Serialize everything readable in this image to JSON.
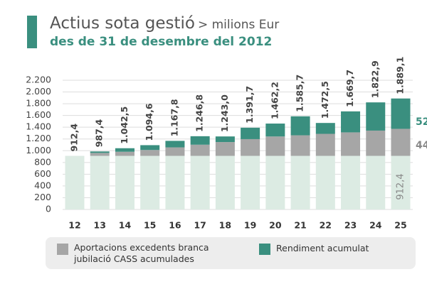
{
  "chart_data": {
    "type": "stacked_bar",
    "title": "Actius sota gestió",
    "unit": "> milions Eur",
    "subtitle": "des de 31 de desembre del 2012",
    "categories": [
      "12",
      "13",
      "14",
      "15",
      "16",
      "17",
      "18",
      "19",
      "20",
      "21",
      "22",
      "23",
      "24",
      "25"
    ],
    "series": [
      {
        "color": "#dcebe3",
        "values": [
          912.4,
          912.4,
          912.4,
          912.4,
          912.4,
          912.4,
          912.4,
          912.4,
          912.4,
          912.4,
          912.4,
          912.4,
          912.4,
          912.4
        ],
        "value_labels": [
          null,
          null,
          null,
          null,
          null,
          null,
          null,
          null,
          null,
          null,
          null,
          null,
          null,
          "912,4"
        ]
      },
      {
        "name": "Aportacions excedents branca jubilació CASS acumulades",
        "color": "#a6a6a6",
        "values": [
          0,
          50,
          70,
          100,
          145,
          190,
          235,
          285,
          330,
          350,
          375,
          400,
          430,
          460
        ]
      },
      {
        "name": "Rendiment acumulat",
        "color": "#3a8f7f",
        "values": [
          0,
          25,
          60.1,
          82.2,
          110.4,
          144.4,
          95.6,
          194.3,
          219.8,
          323.3,
          185.1,
          357.3,
          480.5,
          516.7
        ]
      }
    ],
    "totals": {
      "values": [
        912.4,
        987.4,
        1042.5,
        1094.6,
        1167.8,
        1246.8,
        1243.0,
        1391.7,
        1462.2,
        1585.7,
        1472.5,
        1669.7,
        1822.9,
        1889.1
      ],
      "value_labels": [
        "912,4",
        "987,4",
        "1.042,5",
        "1.094,6",
        "1.167,8",
        "1.246,8",
        "1.243,0",
        "1.391,7",
        "1.462,2",
        "1.585,7",
        "1.472,5",
        "1.669,7",
        "1.822,9",
        "1.889,1"
      ]
    },
    "annotations": [
      "52",
      "44"
    ],
    "ylim": [
      0,
      2200
    ],
    "yticks": [
      0,
      200,
      400,
      600,
      800,
      {
        "value": 1000,
        "label": "1.000"
      },
      {
        "value": 1200,
        "label": "1.200"
      },
      {
        "value": 1400,
        "label": "1.400"
      },
      {
        "value": 1600,
        "label": "1.600"
      },
      {
        "value": 1800,
        "label": "1.800"
      },
      {
        "value": 2000,
        "label": "2.000"
      },
      {
        "value": 2200,
        "label": "2.200"
      }
    ],
    "grid": true
  }
}
